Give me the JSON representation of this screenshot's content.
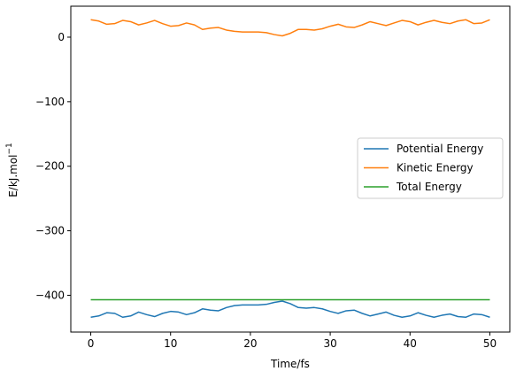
{
  "chart_data": {
    "type": "line",
    "xlabel": "Time/fs",
    "ylabel": "E/kJ.mol",
    "ylabel_superscript": "−1",
    "xlim": [
      -2.5,
      52.5
    ],
    "ylim": [
      -457,
      48
    ],
    "x_ticks": [
      0,
      10,
      20,
      30,
      40,
      50
    ],
    "x_tick_labels": [
      "0",
      "10",
      "20",
      "30",
      "40",
      "50"
    ],
    "y_ticks": [
      0,
      -100,
      -200,
      -300,
      -400
    ],
    "y_tick_labels": [
      "0",
      "−100",
      "−200",
      "−300",
      "−400"
    ],
    "grid": false,
    "legend_position": "center-right",
    "series": [
      {
        "name": "Potential Energy",
        "color": "#1f77b4",
        "x": [
          0,
          1,
          2,
          3,
          4,
          5,
          6,
          7,
          8,
          9,
          10,
          11,
          12,
          13,
          14,
          15,
          16,
          17,
          18,
          19,
          20,
          21,
          22,
          23,
          24,
          25,
          26,
          27,
          28,
          29,
          30,
          31,
          32,
          33,
          34,
          35,
          36,
          37,
          38,
          39,
          40,
          41,
          42,
          43,
          44,
          45,
          46,
          47,
          48,
          49,
          50
        ],
        "y": [
          -434,
          -432,
          -427,
          -428,
          -434,
          -432,
          -426,
          -430,
          -433,
          -428,
          -425,
          -426,
          -430,
          -427,
          -421,
          -423,
          -424,
          -419,
          -416,
          -415,
          -415,
          -415,
          -414,
          -411,
          -409,
          -413,
          -419,
          -420,
          -419,
          -421,
          -425,
          -428,
          -424,
          -423,
          -428,
          -432,
          -429,
          -426,
          -431,
          -434,
          -432,
          -427,
          -431,
          -434,
          -431,
          -429,
          -433,
          -434,
          -429,
          -430,
          -434
        ]
      },
      {
        "name": "Kinetic Energy",
        "color": "#ff7f0e",
        "x": [
          0,
          1,
          2,
          3,
          4,
          5,
          6,
          7,
          8,
          9,
          10,
          11,
          12,
          13,
          14,
          15,
          16,
          17,
          18,
          19,
          20,
          21,
          22,
          23,
          24,
          25,
          26,
          27,
          28,
          29,
          30,
          31,
          32,
          33,
          34,
          35,
          36,
          37,
          38,
          39,
          40,
          41,
          42,
          43,
          44,
          45,
          46,
          47,
          48,
          49,
          50
        ],
        "y": [
          27,
          25,
          20,
          21,
          26,
          24,
          19,
          22,
          26,
          21,
          17,
          18,
          22,
          19,
          12,
          14,
          15,
          11,
          9,
          8,
          8,
          8,
          7,
          4,
          2,
          6,
          12,
          12,
          11,
          13,
          17,
          20,
          16,
          15,
          19,
          24,
          21,
          18,
          22,
          26,
          24,
          19,
          23,
          26,
          23,
          21,
          25,
          27,
          21,
          22,
          27
        ]
      },
      {
        "name": "Total Energy",
        "color": "#2ca02c",
        "x": [
          0,
          10,
          20,
          30,
          40,
          50
        ],
        "y": [
          -407,
          -407,
          -407,
          -407,
          -407,
          -407
        ]
      }
    ]
  }
}
